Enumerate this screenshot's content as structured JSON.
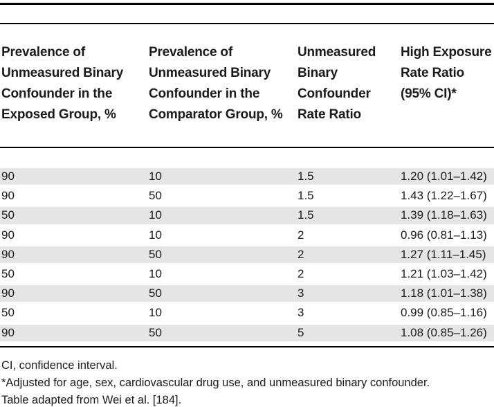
{
  "colors": {
    "stripe": "#e5e5e5",
    "rule": "#000000",
    "text": "#1a1a1a",
    "background": "#ffffff"
  },
  "table": {
    "columns": [
      "Prevalence of Unmeasured Binary Confounder in the Exposed Group, %",
      "Prevalence of Unmeasured Binary Confounder in the Comparator Group, %",
      "Unmeasured Binary Confounder Rate Ratio",
      "High Exposure Rate Ratio (95% CI)*"
    ],
    "rows": [
      [
        "90",
        "10",
        "1.5",
        "1.20 (1.01–1.42)"
      ],
      [
        "90",
        "50",
        "1.5",
        "1.43 (1.22–1.67)"
      ],
      [
        "50",
        "10",
        "1.5",
        "1.39 (1.18–1.63)"
      ],
      [
        "90",
        "10",
        "2",
        "0.96 (0.81–1.13)"
      ],
      [
        "90",
        "50",
        "2",
        "1.27 (1.11–1.45)"
      ],
      [
        "50",
        "10",
        "2",
        "1.21 (1.03–1.42)"
      ],
      [
        "90",
        "50",
        "3",
        "1.18 (1.01–1.38)"
      ],
      [
        "50",
        "10",
        "3",
        "0.99 (0.85–1.16)"
      ],
      [
        "90",
        "50",
        "5",
        "1.08 (0.85–1.26)"
      ]
    ],
    "footnotes": [
      "CI, confidence interval.",
      "*Adjusted for age, sex, cardiovascular drug use, and unmeasured binary confounder.",
      "Table adapted from Wei et al. [184]."
    ]
  }
}
